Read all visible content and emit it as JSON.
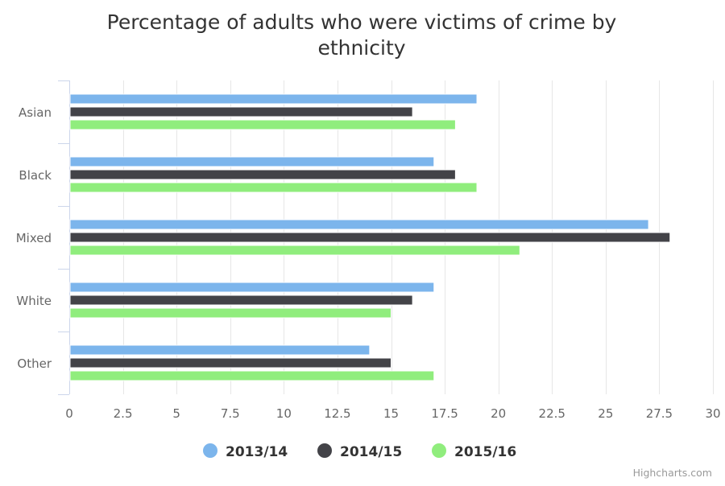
{
  "chart_data": {
    "type": "bar",
    "orientation": "horizontal",
    "title": "Percentage of adults who were victims of crime by ethnicity",
    "title_lines": [
      "Percentage of adults who were victims of crime by",
      "ethnicity"
    ],
    "categories": [
      "Asian",
      "Black",
      "Mixed",
      "White",
      "Other"
    ],
    "series": [
      {
        "name": "2013/14",
        "color": "#7cb5ec",
        "values": [
          19,
          17,
          27,
          17,
          14
        ]
      },
      {
        "name": "2014/15",
        "color": "#434348",
        "values": [
          16,
          18,
          28,
          16,
          15
        ]
      },
      {
        "name": "2015/16",
        "color": "#90ed7d",
        "values": [
          18,
          19,
          21,
          15,
          17
        ]
      }
    ],
    "xlim": [
      0,
      30
    ],
    "ticks": [
      "0",
      "2.5",
      "5",
      "7.5",
      "10",
      "12.5",
      "15",
      "17.5",
      "20",
      "22.5",
      "25",
      "27.5",
      "30"
    ],
    "grid": true,
    "legend_position": "bottom-center",
    "credits": "Highcharts.com"
  }
}
